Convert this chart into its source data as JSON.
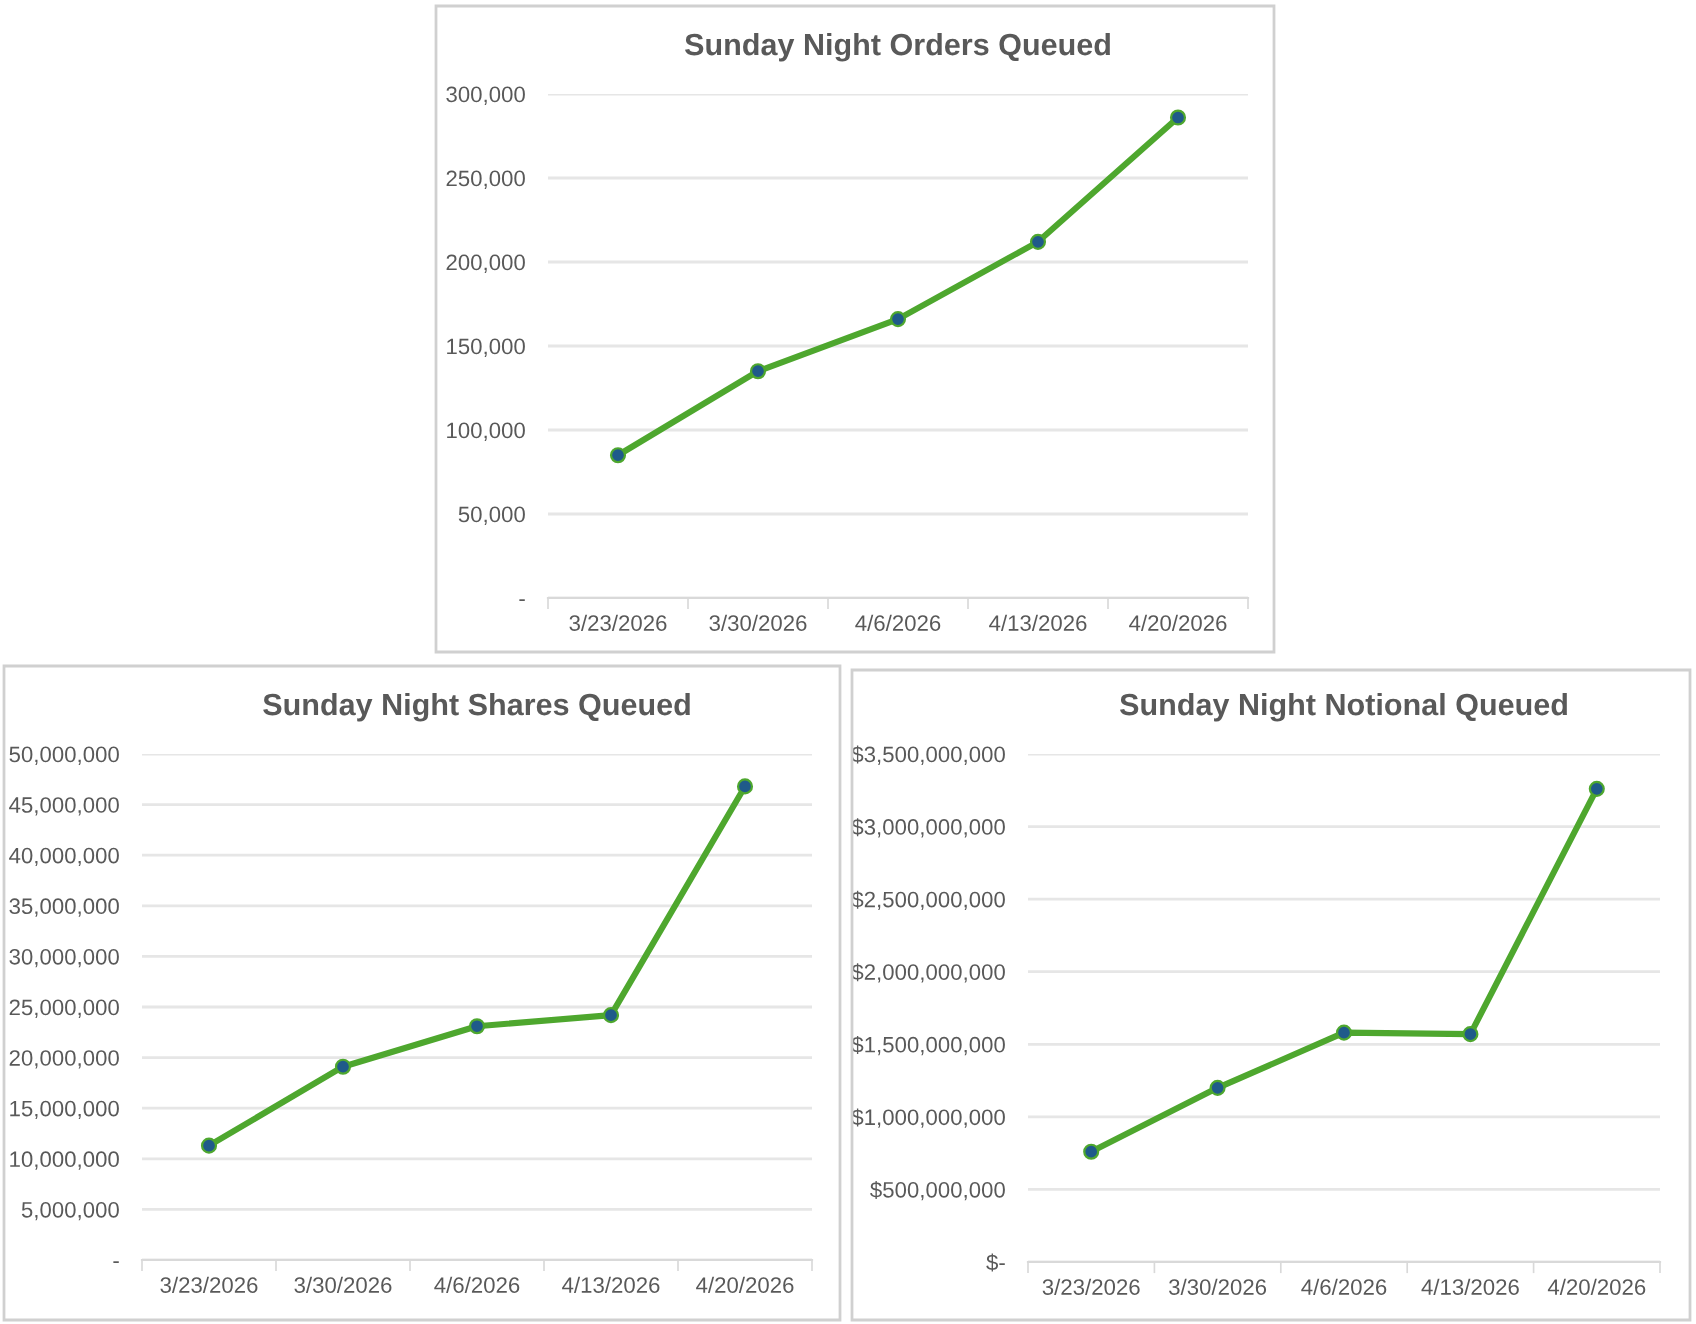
{
  "chart_data": [
    {
      "type": "line",
      "title": "Sunday Night Orders Queued",
      "categories": [
        "3/23/2026",
        "3/30/2026",
        "4/6/2026",
        "4/13/2026",
        "4/20/2026"
      ],
      "series": [
        {
          "color": "#4ea72e",
          "values": [
            85000,
            135000,
            166000,
            212000,
            286000
          ]
        }
      ],
      "ylim": [
        0,
        300000
      ],
      "yticks": [
        {
          "value": 0,
          "label": "-"
        },
        {
          "value": 50000,
          "label": "50,000"
        },
        {
          "value": 100000,
          "label": "100,000"
        },
        {
          "value": 150000,
          "label": "150,000"
        },
        {
          "value": 200000,
          "label": "200,000"
        },
        {
          "value": 250000,
          "label": "250,000"
        },
        {
          "value": 300000,
          "label": "300,000"
        }
      ],
      "grid": "y",
      "marker": "circle",
      "line_style": "solid"
    },
    {
      "type": "line",
      "title": "Sunday Night Shares Queued",
      "categories": [
        "3/23/2026",
        "3/30/2026",
        "4/6/2026",
        "4/13/2026",
        "4/20/2026"
      ],
      "series": [
        {
          "color": "#4ea72e",
          "values": [
            11300000,
            19100000,
            23100000,
            24200000,
            46800000
          ]
        }
      ],
      "ylim": [
        0,
        50000000
      ],
      "yticks": [
        {
          "value": 0,
          "label": "-"
        },
        {
          "value": 5000000,
          "label": "5,000,000"
        },
        {
          "value": 10000000,
          "label": "10,000,000"
        },
        {
          "value": 15000000,
          "label": "15,000,000"
        },
        {
          "value": 20000000,
          "label": "20,000,000"
        },
        {
          "value": 25000000,
          "label": "25,000,000"
        },
        {
          "value": 30000000,
          "label": "30,000,000"
        },
        {
          "value": 35000000,
          "label": "35,000,000"
        },
        {
          "value": 40000000,
          "label": "40,000,000"
        },
        {
          "value": 45000000,
          "label": "45,000,000"
        },
        {
          "value": 50000000,
          "label": "50,000,000"
        }
      ],
      "grid": "y",
      "marker": "circle",
      "line_style": "solid"
    },
    {
      "type": "line",
      "title": "Sunday Night Notional Queued",
      "categories": [
        "3/23/2026",
        "3/30/2026",
        "4/6/2026",
        "4/13/2026",
        "4/20/2026"
      ],
      "series": [
        {
          "color": "#4ea72e",
          "values": [
            760000000,
            1200000000,
            1580000000,
            1570000000,
            3260000000
          ]
        }
      ],
      "ylim": [
        0,
        3500000000
      ],
      "yticks": [
        {
          "value": 0,
          "label": "$-"
        },
        {
          "value": 500000000,
          "label": "$500,000,000"
        },
        {
          "value": 1000000000,
          "label": "$1,000,000,000"
        },
        {
          "value": 1500000000,
          "label": "$1,500,000,000"
        },
        {
          "value": 2000000000,
          "label": "$2,000,000,000"
        },
        {
          "value": 2500000000,
          "label": "$2,500,000,000"
        },
        {
          "value": 3000000000,
          "label": "$3,000,000,000"
        },
        {
          "value": 3500000000,
          "label": "$3,500,000,000"
        }
      ],
      "grid": "y",
      "marker": "circle",
      "line_style": "solid"
    }
  ]
}
